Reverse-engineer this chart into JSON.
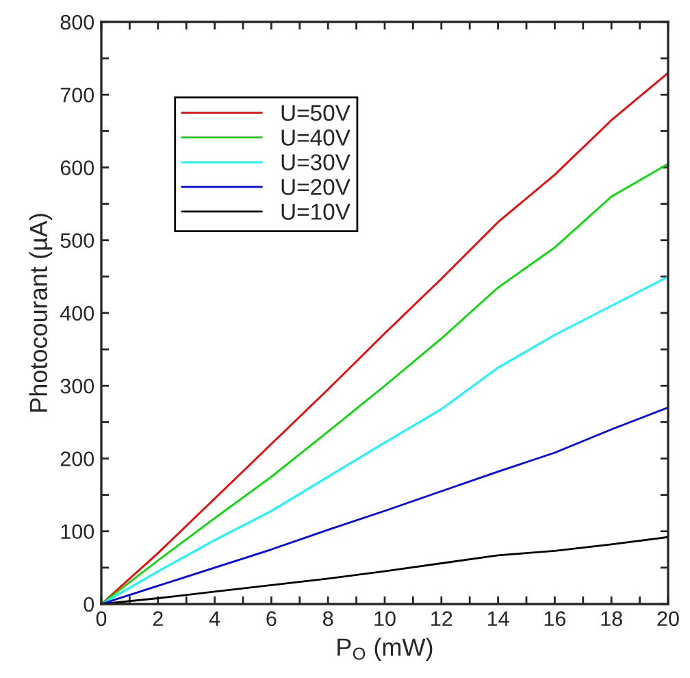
{
  "chart_data": {
    "type": "line",
    "xlabel": "P$_{O}$ (mW)",
    "ylabel": "Photocourant (µA)",
    "x": [
      0,
      2,
      4,
      6,
      8,
      10,
      12,
      14,
      16,
      18,
      20
    ],
    "series": [
      {
        "name": "U=50V",
        "color": "#ff0000",
        "values": [
          0,
          70,
          145,
          220,
          295,
          372,
          447,
          525,
          590,
          665,
          730
        ]
      },
      {
        "name": "U=40V",
        "color": "#00e000",
        "values": [
          0,
          60,
          118,
          175,
          237,
          300,
          365,
          435,
          490,
          560,
          605
        ]
      },
      {
        "name": "U=30V",
        "color": "#00ffff",
        "values": [
          0,
          45,
          88,
          128,
          175,
          222,
          268,
          325,
          370,
          410,
          450
        ]
      },
      {
        "name": "U=20V",
        "color": "#0000ff",
        "values": [
          0,
          25,
          50,
          75,
          102,
          128,
          155,
          182,
          208,
          240,
          270
        ]
      },
      {
        "name": "U=10V",
        "color": "#000000",
        "values": [
          0,
          8,
          17,
          26,
          35,
          45,
          56,
          67,
          73,
          82,
          92
        ]
      }
    ],
    "xlim": [
      0,
      20
    ],
    "ylim": [
      0,
      800
    ],
    "xticks": [
      0,
      {
        "value": 1,
        "label": null
      },
      2,
      {
        "value": 3,
        "label": null
      },
      4,
      {
        "value": 5,
        "label": null
      },
      6,
      {
        "value": 7,
        "label": null
      },
      8,
      {
        "value": 9,
        "label": null
      },
      10,
      {
        "value": 11,
        "label": null
      },
      12,
      {
        "value": 13,
        "label": null
      },
      14,
      {
        "value": 15,
        "label": null
      },
      16,
      {
        "value": 17,
        "label": null
      },
      18,
      {
        "value": 19,
        "label": null
      },
      20
    ],
    "yticks": [
      0,
      {
        "value": 50,
        "label": null
      },
      100,
      {
        "value": 150,
        "label": null
      },
      200,
      {
        "value": 250,
        "label": null
      },
      300,
      {
        "value": 350,
        "label": null
      },
      400,
      {
        "value": 450,
        "label": null
      },
      500,
      {
        "value": 550,
        "label": null
      },
      600,
      {
        "value": 650,
        "label": null
      },
      700,
      {
        "value": 750,
        "label": null
      },
      800
    ],
    "grid": false,
    "legend": "top left",
    "marker": "none",
    "line_style": "solid"
  }
}
